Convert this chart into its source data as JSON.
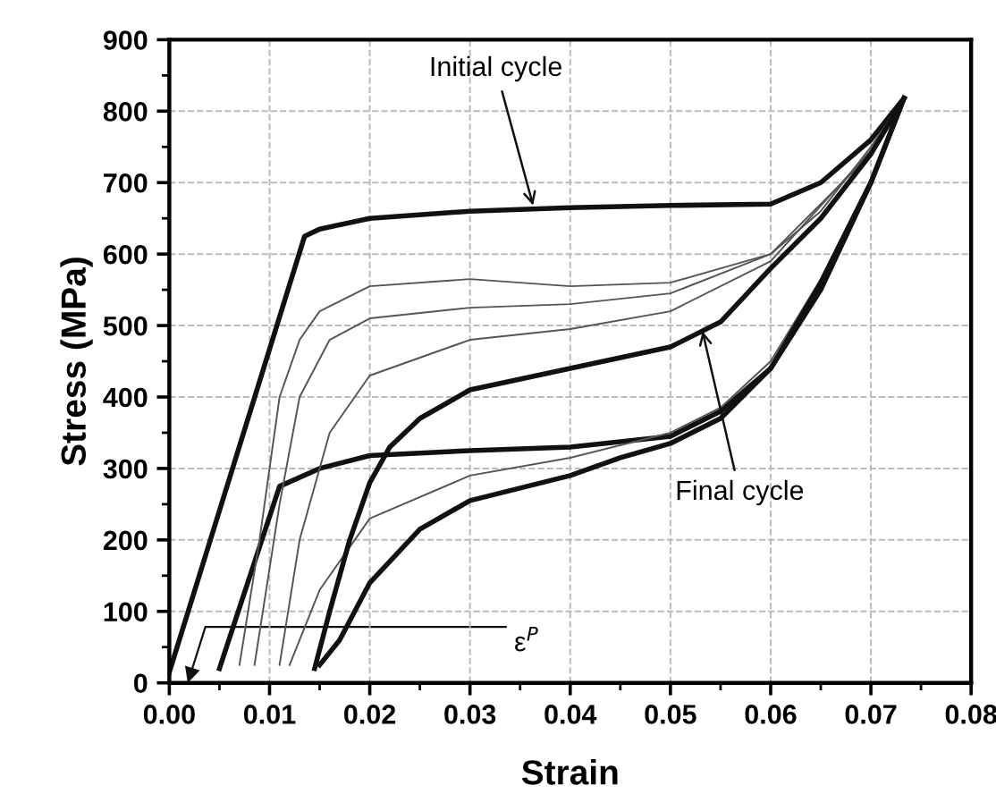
{
  "chart_data": {
    "type": "line",
    "xlabel": "Strain",
    "ylabel": "Stress (MPa)",
    "xlim": [
      0,
      0.08
    ],
    "ylim": [
      0,
      900
    ],
    "xticks": [
      {
        "value": 0,
        "label": "0.00"
      },
      {
        "value": 0.01,
        "label": "0.01"
      },
      {
        "value": 0.02,
        "label": "0.02"
      },
      {
        "value": 0.03,
        "label": "0.03"
      },
      {
        "value": 0.04,
        "label": "0.04"
      },
      {
        "value": 0.05,
        "label": "0.05"
      },
      {
        "value": 0.06,
        "label": "0.06"
      },
      {
        "value": 0.07,
        "label": "0.07"
      },
      {
        "value": 0.08,
        "label": "0.08"
      }
    ],
    "yticks": [
      0,
      100,
      200,
      300,
      400,
      500,
      600,
      700,
      800,
      900
    ],
    "grid": true,
    "legend": false,
    "marker": "none",
    "line_style": "solid",
    "series": [
      {
        "color": "#111111",
        "x": [
          0,
          0.0135,
          0.015,
          0.02,
          0.03,
          0.04,
          0.05,
          0.06,
          0.065,
          0.07,
          0.0733
        ],
        "values": [
          15,
          625,
          635,
          650,
          660,
          665,
          668,
          670,
          700,
          760,
          818
        ]
      },
      {
        "color": "#111111",
        "x": [
          0.0733,
          0.07,
          0.065,
          0.06,
          0.055,
          0.05,
          0.04,
          0.03,
          0.02,
          0.015,
          0.011,
          0.005
        ],
        "values": [
          818,
          700,
          550,
          440,
          380,
          345,
          330,
          325,
          318,
          300,
          275,
          20
        ]
      },
      {
        "color": "#555555",
        "x": [
          0.007,
          0.009,
          0.011,
          0.013,
          0.015,
          0.02,
          0.03,
          0.04,
          0.05,
          0.06,
          0.065,
          0.07,
          0.0733
        ],
        "values": [
          25,
          200,
          400,
          480,
          520,
          555,
          565,
          555,
          560,
          600,
          660,
          750,
          818
        ]
      },
      {
        "color": "#555555",
        "x": [
          0.0085,
          0.011,
          0.013,
          0.016,
          0.02,
          0.03,
          0.04,
          0.05,
          0.06,
          0.07,
          0.0733
        ],
        "values": [
          25,
          250,
          400,
          480,
          510,
          525,
          530,
          545,
          600,
          740,
          818
        ]
      },
      {
        "color": "#555555",
        "x": [
          0.011,
          0.013,
          0.016,
          0.02,
          0.03,
          0.04,
          0.05,
          0.06,
          0.07,
          0.0733
        ],
        "values": [
          25,
          200,
          350,
          430,
          480,
          495,
          520,
          590,
          745,
          818
        ]
      },
      {
        "color": "#555555",
        "x": [
          0.0733,
          0.07,
          0.065,
          0.06,
          0.055,
          0.05,
          0.04,
          0.03,
          0.02,
          0.015,
          0.012
        ],
        "values": [
          818,
          705,
          565,
          450,
          385,
          350,
          315,
          290,
          230,
          130,
          25
        ]
      },
      {
        "color": "#111111",
        "x": [
          0.0145,
          0.016,
          0.018,
          0.02,
          0.022,
          0.025,
          0.03,
          0.04,
          0.05,
          0.055,
          0.06,
          0.065,
          0.07,
          0.0733
        ],
        "values": [
          20,
          100,
          200,
          280,
          330,
          370,
          410,
          440,
          470,
          505,
          580,
          650,
          740,
          818
        ]
      },
      {
        "color": "#111111",
        "x": [
          0.0733,
          0.07,
          0.065,
          0.06,
          0.055,
          0.05,
          0.045,
          0.04,
          0.03,
          0.025,
          0.02,
          0.017,
          0.015
        ],
        "values": [
          818,
          700,
          560,
          440,
          370,
          335,
          315,
          290,
          255,
          215,
          140,
          60,
          25
        ]
      }
    ],
    "annotations": [
      {
        "text": "Initial cycle",
        "x": 0.0363,
        "y": 668
      },
      {
        "text": "Final cycle",
        "x": 0.0532,
        "y": 492
      },
      "ε$^{P}$"
    ]
  }
}
